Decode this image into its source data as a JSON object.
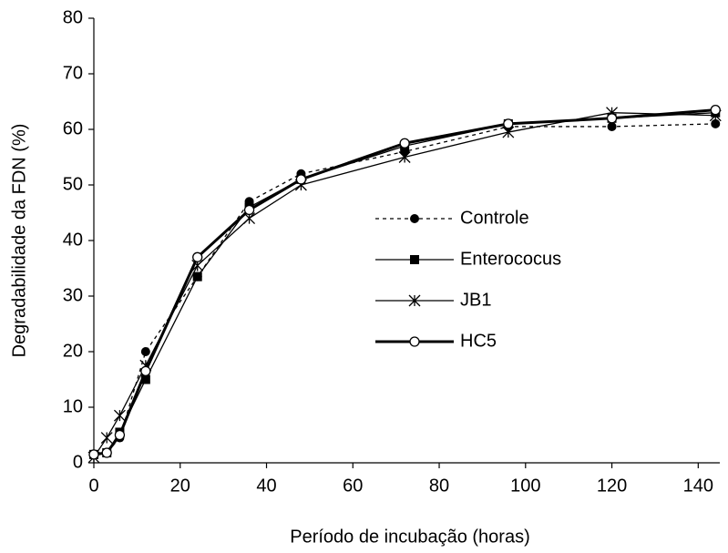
{
  "chart_data": {
    "type": "line",
    "xlabel": "Período de incubação (horas)",
    "ylabel": "Degradabilidade da FDN (%)",
    "x": [
      0,
      3,
      6,
      12,
      24,
      36,
      48,
      72,
      96,
      120,
      144
    ],
    "xlim": [
      0,
      145
    ],
    "xticks": [
      0,
      20,
      40,
      60,
      80,
      100,
      120,
      140
    ],
    "ylim": [
      0,
      80
    ],
    "yticks": [
      0,
      10,
      20,
      30,
      40,
      50,
      60,
      70,
      80
    ],
    "series": [
      {
        "name": "Controle",
        "color": "#000000",
        "line_style": "dotted",
        "line_width": 1.3,
        "marker": "circle-filled",
        "values": [
          1.5,
          1.8,
          4.5,
          20,
          33.5,
          47,
          52,
          56,
          60.5,
          60.5,
          61
        ]
      },
      {
        "name": "Enterococus",
        "color": "#000000",
        "line_style": "solid",
        "line_width": 1.3,
        "marker": "square-filled",
        "values": [
          1.5,
          1.8,
          5.5,
          15,
          33.5,
          46,
          51,
          57,
          61,
          62,
          63
        ]
      },
      {
        "name": "JB1",
        "color": "#000000",
        "line_style": "solid",
        "line_width": 1.3,
        "marker": "asterisk",
        "values": [
          1,
          4.5,
          8.5,
          17.5,
          35.5,
          44,
          50,
          55,
          59.5,
          63,
          62.5
        ]
      },
      {
        "name": "HC5",
        "color": "#000000",
        "line_style": "solid",
        "line_width": 3,
        "marker": "circle-open",
        "values": [
          1.5,
          1.8,
          5,
          16.5,
          37,
          45.5,
          51,
          57.5,
          61,
          62,
          63.5
        ]
      }
    ]
  }
}
